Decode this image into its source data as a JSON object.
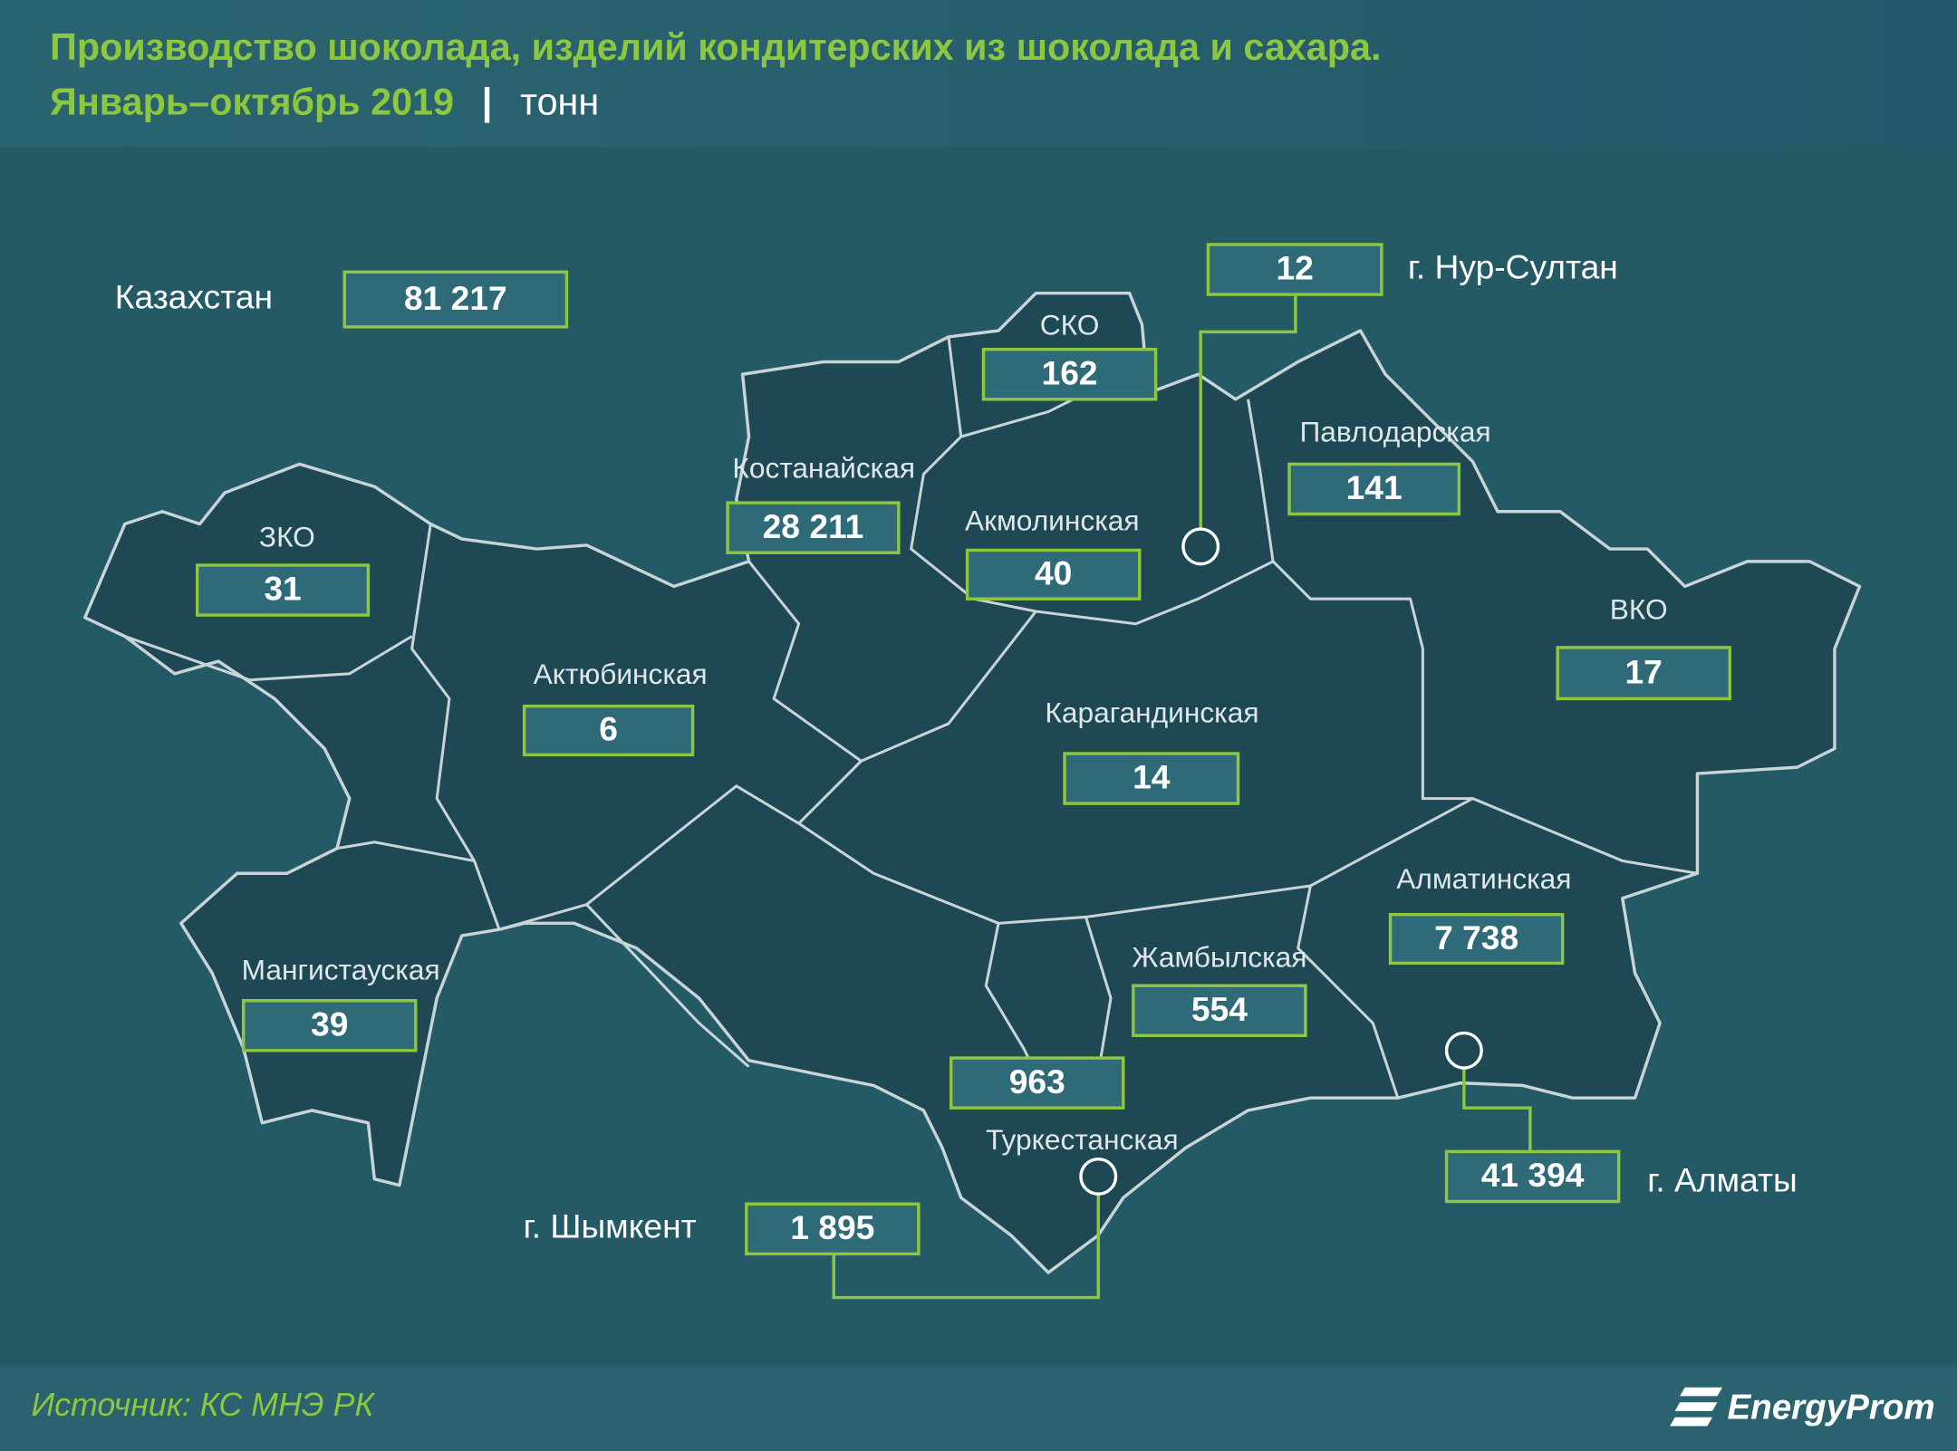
{
  "header": {
    "title": "Производство шоколада, изделий кондитерских из шоколада и сахара.",
    "period": "Январь–октябрь 2019",
    "separator": "|",
    "unit": "тонн"
  },
  "regions": [
    {
      "name": "Казахстан",
      "value": "81 217"
    },
    {
      "name": "ЗКО",
      "value": "31"
    },
    {
      "name": "Актюбинская",
      "value": "6"
    },
    {
      "name": "Костанайская",
      "value": "28 211"
    },
    {
      "name": "СКО",
      "value": "162"
    },
    {
      "name": "Акмолинская",
      "value": "40"
    },
    {
      "name": "г. Нур-Султан",
      "value": "12"
    },
    {
      "name": "Павлодарская",
      "value": "141"
    },
    {
      "name": "ВКО",
      "value": "17"
    },
    {
      "name": "Карагандинская",
      "value": "14"
    },
    {
      "name": "Алматинская",
      "value": "7 738"
    },
    {
      "name": "Жамбылская",
      "value": "554"
    },
    {
      "name": "Мангистауская",
      "value": "39"
    },
    {
      "name": "Туркестанская",
      "value": "963"
    },
    {
      "name": "г. Шымкент",
      "value": "1 895"
    },
    {
      "name": "г. Алматы",
      "value": "41 394"
    }
  ],
  "footer": {
    "source": "Источник: КС МНЭ РК",
    "logo": "EnergyProm"
  }
}
